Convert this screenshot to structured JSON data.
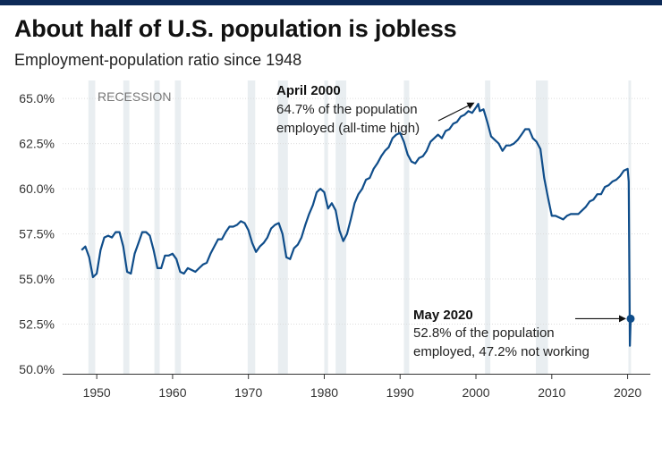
{
  "header": {
    "title": "About half of U.S. population is jobless",
    "subtitle": "Employment-population ratio since 1948"
  },
  "colors": {
    "line": "#0f4d8a",
    "recession": "#e9eef1",
    "grid": "#dddddd",
    "topbar": "#0d2a57"
  },
  "chart_data": {
    "type": "line",
    "title": "About half of U.S. population is jobless",
    "subtitle": "Employment-population ratio since 1948",
    "xlabel": "",
    "ylabel": "",
    "xlim": [
      1945.5,
      2023
    ],
    "ylim": [
      49.75,
      66
    ],
    "grid": true,
    "x_ticks": [
      1950,
      1960,
      1970,
      1980,
      1990,
      2000,
      2010,
      2020
    ],
    "x_tick_labels": [
      "1950",
      "1960",
      "1970",
      "1980",
      "1990",
      "2000",
      "2010",
      "2020"
    ],
    "y_ticks": [
      50,
      52.5,
      55,
      57.5,
      60,
      62.5,
      65
    ],
    "y_tick_labels": [
      "50.0%",
      "52.5%",
      "55.0%",
      "57.5%",
      "60.0%",
      "62.5%",
      "65.0%"
    ],
    "recession_label": "RECESSION",
    "recessions": [
      [
        1948.9,
        1949.8
      ],
      [
        1953.5,
        1954.3
      ],
      [
        1957.6,
        1958.3
      ],
      [
        1960.3,
        1961.1
      ],
      [
        1969.9,
        1970.9
      ],
      [
        1973.9,
        1975.2
      ],
      [
        1980.0,
        1980.5
      ],
      [
        1981.5,
        1982.9
      ],
      [
        1990.5,
        1991.2
      ],
      [
        2001.2,
        2001.9
      ],
      [
        2007.9,
        2009.5
      ],
      [
        2020.1,
        2020.4
      ]
    ],
    "series": [
      {
        "name": "Employment-population ratio (%)",
        "x": [
          1948.0,
          1948.5,
          1949.0,
          1949.5,
          1950.0,
          1950.5,
          1951.0,
          1951.5,
          1952.0,
          1952.5,
          1953.0,
          1953.5,
          1954.0,
          1954.5,
          1955.0,
          1955.5,
          1956.0,
          1956.5,
          1957.0,
          1957.5,
          1958.0,
          1958.5,
          1959.0,
          1959.5,
          1960.0,
          1960.5,
          1961.0,
          1961.5,
          1962.0,
          1962.5,
          1963.0,
          1963.5,
          1964.0,
          1964.5,
          1965.0,
          1965.5,
          1966.0,
          1966.5,
          1967.0,
          1967.5,
          1968.0,
          1968.5,
          1969.0,
          1969.5,
          1970.0,
          1970.5,
          1971.0,
          1971.5,
          1972.0,
          1972.5,
          1973.0,
          1973.5,
          1974.0,
          1974.5,
          1975.0,
          1975.5,
          1976.0,
          1976.5,
          1977.0,
          1977.5,
          1978.0,
          1978.5,
          1979.0,
          1979.5,
          1980.0,
          1980.5,
          1981.0,
          1981.5,
          1982.0,
          1982.5,
          1983.0,
          1983.5,
          1984.0,
          1984.5,
          1985.0,
          1985.5,
          1986.0,
          1986.5,
          1987.0,
          1987.5,
          1988.0,
          1988.5,
          1989.0,
          1989.5,
          1990.0,
          1990.5,
          1991.0,
          1991.5,
          1992.0,
          1992.5,
          1993.0,
          1993.5,
          1994.0,
          1994.5,
          1995.0,
          1995.5,
          1996.0,
          1996.5,
          1997.0,
          1997.5,
          1998.0,
          1998.5,
          1999.0,
          1999.5,
          2000.0,
          2000.3,
          2000.5,
          2001.0,
          2001.5,
          2002.0,
          2002.5,
          2003.0,
          2003.5,
          2004.0,
          2004.5,
          2005.0,
          2005.5,
          2006.0,
          2006.5,
          2007.0,
          2007.5,
          2008.0,
          2008.5,
          2009.0,
          2009.5,
          2010.0,
          2010.5,
          2011.0,
          2011.5,
          2012.0,
          2012.5,
          2013.0,
          2013.5,
          2014.0,
          2014.5,
          2015.0,
          2015.5,
          2016.0,
          2016.5,
          2017.0,
          2017.5,
          2018.0,
          2018.5,
          2019.0,
          2019.5,
          2020.0,
          2020.15,
          2020.3,
          2020.4
        ],
        "values": [
          56.6,
          56.8,
          56.2,
          55.1,
          55.3,
          56.6,
          57.3,
          57.4,
          57.3,
          57.6,
          57.6,
          56.8,
          55.4,
          55.3,
          56.4,
          57.0,
          57.6,
          57.6,
          57.4,
          56.6,
          55.6,
          55.6,
          56.3,
          56.3,
          56.4,
          56.1,
          55.4,
          55.3,
          55.6,
          55.5,
          55.4,
          55.6,
          55.8,
          55.9,
          56.4,
          56.8,
          57.2,
          57.2,
          57.6,
          57.9,
          57.9,
          58.0,
          58.2,
          58.1,
          57.7,
          57.0,
          56.5,
          56.8,
          57.0,
          57.3,
          57.8,
          58.0,
          58.1,
          57.5,
          56.2,
          56.1,
          56.7,
          56.9,
          57.3,
          58.0,
          58.6,
          59.1,
          59.8,
          60.0,
          59.8,
          58.9,
          59.2,
          58.8,
          57.7,
          57.1,
          57.5,
          58.3,
          59.2,
          59.7,
          60.0,
          60.5,
          60.6,
          61.1,
          61.4,
          61.8,
          62.1,
          62.3,
          62.8,
          63.0,
          63.1,
          62.6,
          61.9,
          61.5,
          61.4,
          61.7,
          61.8,
          62.1,
          62.6,
          62.8,
          63.0,
          62.8,
          63.2,
          63.3,
          63.6,
          63.7,
          64.0,
          64.1,
          64.3,
          64.2,
          64.5,
          64.7,
          64.3,
          64.4,
          63.7,
          62.9,
          62.7,
          62.5,
          62.1,
          62.4,
          62.4,
          62.5,
          62.7,
          63.0,
          63.3,
          63.3,
          62.8,
          62.6,
          62.2,
          60.6,
          59.5,
          58.5,
          58.5,
          58.4,
          58.3,
          58.5,
          58.6,
          58.6,
          58.6,
          58.8,
          59.0,
          59.3,
          59.4,
          59.7,
          59.7,
          60.1,
          60.2,
          60.4,
          60.5,
          60.7,
          61.0,
          61.1,
          60.4,
          51.3,
          52.8
        ]
      }
    ],
    "annotations": [
      {
        "name": "april-2000",
        "x": 2000.3,
        "y": 64.7,
        "title": "April 2000",
        "lines": [
          "64.7% of the population",
          "employed (all-time high)"
        ]
      },
      {
        "name": "may-2020",
        "x": 2020.4,
        "y": 52.8,
        "title": "May 2020",
        "lines": [
          "52.8% of the population",
          "employed, 47.2% not working"
        ]
      }
    ]
  }
}
